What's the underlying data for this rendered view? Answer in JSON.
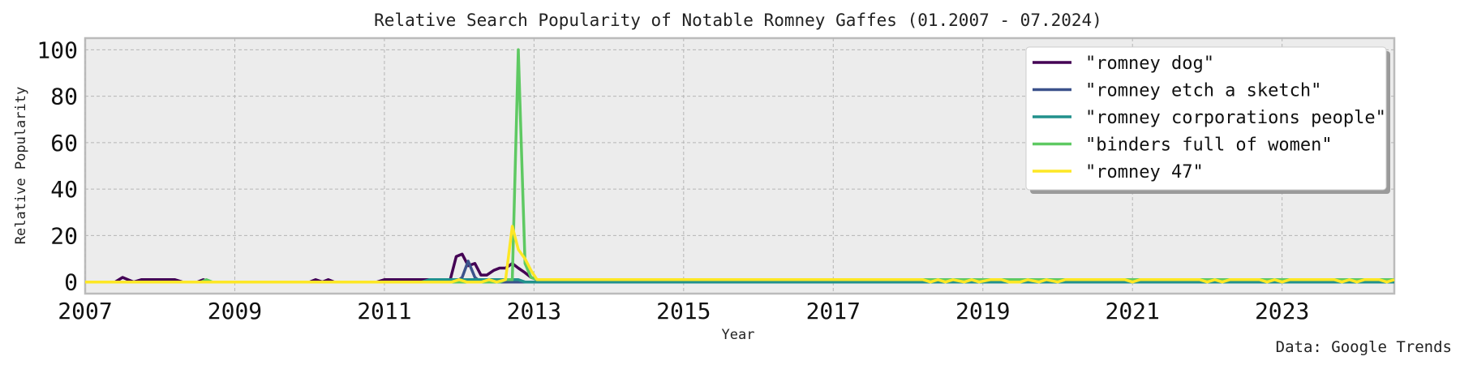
{
  "chart_data": {
    "type": "line",
    "title": "Relative Search Popularity of Notable Romney Gaffes (01.2007 - 07.2024)",
    "xlabel": "Year",
    "ylabel": "Relative Popularity",
    "xlim": [
      2007.0,
      2024.5
    ],
    "ylim": [
      -5,
      105
    ],
    "xticks": [
      2007,
      2009,
      2011,
      2013,
      2015,
      2017,
      2019,
      2021,
      2023
    ],
    "yticks": [
      0,
      20,
      40,
      60,
      80,
      100
    ],
    "grid": true,
    "legend_position": "top-right",
    "source": "Data: Google Trends",
    "series": [
      {
        "name": "\"romney dog\"",
        "color": "#440154",
        "points": [
          [
            2007.0,
            0
          ],
          [
            2007.4,
            0
          ],
          [
            2007.5,
            2
          ],
          [
            2007.65,
            0
          ],
          [
            2007.75,
            1
          ],
          [
            2008.2,
            1
          ],
          [
            2008.3,
            0
          ],
          [
            2008.5,
            0
          ],
          [
            2008.58,
            1
          ],
          [
            2008.67,
            0
          ],
          [
            2010.0,
            0
          ],
          [
            2010.08,
            1
          ],
          [
            2010.17,
            0
          ],
          [
            2010.25,
            1
          ],
          [
            2010.33,
            0
          ],
          [
            2010.9,
            0
          ],
          [
            2011.0,
            1
          ],
          [
            2011.8,
            1
          ],
          [
            2011.88,
            1
          ],
          [
            2011.96,
            11
          ],
          [
            2012.04,
            12
          ],
          [
            2012.12,
            7
          ],
          [
            2012.21,
            8
          ],
          [
            2012.29,
            3
          ],
          [
            2012.37,
            3
          ],
          [
            2012.46,
            5
          ],
          [
            2012.54,
            6
          ],
          [
            2012.62,
            6
          ],
          [
            2012.71,
            8
          ],
          [
            2012.79,
            6
          ],
          [
            2012.88,
            4
          ],
          [
            2012.96,
            2
          ],
          [
            2013.04,
            1
          ],
          [
            2013.2,
            0
          ],
          [
            2021.3,
            0
          ],
          [
            2021.4,
            1
          ],
          [
            2021.6,
            0
          ],
          [
            2021.7,
            1
          ],
          [
            2021.9,
            1
          ],
          [
            2022.0,
            0
          ],
          [
            2022.2,
            1
          ],
          [
            2022.3,
            0
          ],
          [
            2023.0,
            0
          ],
          [
            2023.1,
            1
          ],
          [
            2023.3,
            0
          ],
          [
            2024.5,
            0
          ]
        ]
      },
      {
        "name": "\"romney etch a sketch\"",
        "color": "#3b528b",
        "points": [
          [
            2007.0,
            0
          ],
          [
            2011.96,
            0
          ],
          [
            2012.04,
            2
          ],
          [
            2012.12,
            9
          ],
          [
            2012.21,
            2
          ],
          [
            2012.29,
            0
          ],
          [
            2024.5,
            0
          ]
        ]
      },
      {
        "name": "\"romney corporations people\"",
        "color": "#21918c",
        "points": [
          [
            2007.0,
            0
          ],
          [
            2011.5,
            0
          ],
          [
            2011.6,
            1
          ],
          [
            2012.6,
            1
          ],
          [
            2012.71,
            1
          ],
          [
            2012.79,
            1
          ],
          [
            2012.88,
            0
          ],
          [
            2024.5,
            0
          ]
        ]
      },
      {
        "name": "\"binders full of women\"",
        "color": "#5ec962",
        "points": [
          [
            2007.0,
            0
          ],
          [
            2008.55,
            0
          ],
          [
            2008.62,
            1
          ],
          [
            2008.7,
            0
          ],
          [
            2012.55,
            0
          ],
          [
            2012.62,
            1
          ],
          [
            2012.71,
            1
          ],
          [
            2012.79,
            100
          ],
          [
            2012.88,
            8
          ],
          [
            2012.96,
            2
          ],
          [
            2013.04,
            1
          ],
          [
            2013.5,
            1
          ],
          [
            2024.5,
            1
          ]
        ]
      },
      {
        "name": "\"romney 47\"",
        "color": "#fde725",
        "points": [
          [
            2007.0,
            0
          ],
          [
            2011.9,
            0
          ],
          [
            2012.0,
            1
          ],
          [
            2012.1,
            0
          ],
          [
            2012.3,
            0
          ],
          [
            2012.4,
            1
          ],
          [
            2012.5,
            0
          ],
          [
            2012.62,
            1
          ],
          [
            2012.71,
            24
          ],
          [
            2012.79,
            14
          ],
          [
            2012.88,
            10
          ],
          [
            2012.96,
            5
          ],
          [
            2013.04,
            1
          ],
          [
            2018.2,
            1
          ],
          [
            2018.3,
            0
          ],
          [
            2018.4,
            1
          ],
          [
            2018.5,
            0
          ],
          [
            2018.6,
            1
          ],
          [
            2018.75,
            0
          ],
          [
            2018.85,
            1
          ],
          [
            2018.95,
            0
          ],
          [
            2019.1,
            1
          ],
          [
            2019.25,
            1
          ],
          [
            2019.35,
            0
          ],
          [
            2019.5,
            0
          ],
          [
            2019.6,
            1
          ],
          [
            2019.75,
            0
          ],
          [
            2019.85,
            1
          ],
          [
            2020.0,
            0
          ],
          [
            2020.1,
            1
          ],
          [
            2020.9,
            1
          ],
          [
            2021.0,
            0
          ],
          [
            2021.1,
            1
          ],
          [
            2021.9,
            1
          ],
          [
            2022.0,
            0
          ],
          [
            2022.1,
            1
          ],
          [
            2022.2,
            0
          ],
          [
            2022.3,
            1
          ],
          [
            2022.7,
            1
          ],
          [
            2022.8,
            0
          ],
          [
            2022.9,
            1
          ],
          [
            2023.0,
            0
          ],
          [
            2023.1,
            1
          ],
          [
            2023.7,
            1
          ],
          [
            2023.8,
            0
          ],
          [
            2023.9,
            1
          ],
          [
            2024.0,
            0
          ],
          [
            2024.1,
            1
          ],
          [
            2024.3,
            1
          ],
          [
            2024.4,
            0
          ],
          [
            2024.5,
            1
          ]
        ]
      }
    ]
  }
}
